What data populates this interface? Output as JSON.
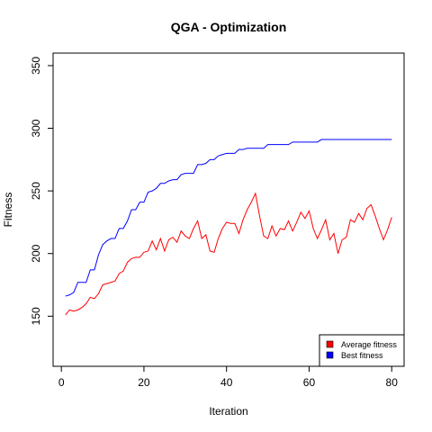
{
  "chart_data": {
    "type": "line",
    "title": "QGA - Optimization",
    "xlabel": "Iteration",
    "ylabel": "Fitness",
    "xlim": [
      -2,
      83
    ],
    "ylim": [
      110,
      360
    ],
    "xticks": [
      0,
      20,
      40,
      60,
      80
    ],
    "yticks": [
      150,
      200,
      250,
      300,
      350
    ],
    "legend_position": "bottom-right",
    "grid": false,
    "series": [
      {
        "name": "Average fitness",
        "color": "#ff0000",
        "x": [
          1,
          2,
          3,
          4,
          5,
          6,
          7,
          8,
          9,
          10,
          11,
          12,
          13,
          14,
          15,
          16,
          17,
          18,
          19,
          20,
          21,
          22,
          23,
          24,
          25,
          26,
          27,
          28,
          29,
          30,
          31,
          32,
          33,
          34,
          35,
          36,
          37,
          38,
          39,
          40,
          41,
          42,
          43,
          44,
          45,
          46,
          47,
          48,
          49,
          50,
          51,
          52,
          53,
          54,
          55,
          56,
          57,
          58,
          59,
          60,
          61,
          62,
          63,
          64,
          65,
          66,
          67,
          68,
          69,
          70,
          71,
          72,
          73,
          74,
          75,
          76,
          77,
          78,
          79,
          80
        ],
        "values": [
          151,
          155,
          154,
          155,
          157,
          160,
          165,
          164,
          168,
          175,
          176,
          177,
          178,
          184,
          186,
          193,
          196,
          197,
          197,
          201,
          202,
          210,
          203,
          212,
          202,
          211,
          213,
          209,
          218,
          214,
          212,
          220,
          226,
          212,
          215,
          202,
          201,
          212,
          220,
          225,
          224,
          224,
          216,
          227,
          235,
          241,
          248,
          230,
          214,
          212,
          222,
          214,
          220,
          219,
          226,
          218,
          225,
          233,
          228,
          234,
          220,
          212,
          219,
          227,
          211,
          216,
          200,
          211,
          213,
          227,
          225,
          232,
          227,
          236,
          239,
          230,
          220,
          211,
          219,
          229
        ]
      },
      {
        "name": "Best fitness",
        "color": "#0000ff",
        "x": [
          1,
          2,
          3,
          4,
          5,
          6,
          7,
          8,
          9,
          10,
          11,
          12,
          13,
          14,
          15,
          16,
          17,
          18,
          19,
          20,
          21,
          22,
          23,
          24,
          25,
          26,
          27,
          28,
          29,
          30,
          31,
          32,
          33,
          34,
          35,
          36,
          37,
          38,
          39,
          40,
          41,
          42,
          43,
          44,
          45,
          46,
          47,
          48,
          49,
          50,
          51,
          52,
          53,
          54,
          55,
          56,
          57,
          58,
          59,
          60,
          61,
          62,
          63,
          64,
          65,
          66,
          67,
          68,
          69,
          70,
          71,
          72,
          73,
          74,
          75,
          76,
          77,
          78,
          79,
          80
        ],
        "values": [
          166,
          167,
          169,
          177,
          177,
          177,
          187,
          187,
          199,
          207,
          210,
          212,
          212,
          220,
          220,
          226,
          235,
          235,
          241,
          241,
          249,
          250,
          252,
          256,
          256,
          258,
          259,
          259,
          263,
          264,
          264,
          264,
          271,
          271,
          272,
          275,
          275,
          278,
          279,
          280,
          280,
          280,
          283,
          283,
          284,
          284,
          284,
          284,
          284,
          287,
          287,
          287,
          287,
          287,
          287,
          289,
          289,
          289,
          289,
          289,
          289,
          289,
          291,
          291,
          291,
          291,
          291,
          291,
          291,
          291,
          291,
          291,
          291,
          291,
          291,
          291,
          291,
          291,
          291,
          291
        ]
      }
    ]
  }
}
